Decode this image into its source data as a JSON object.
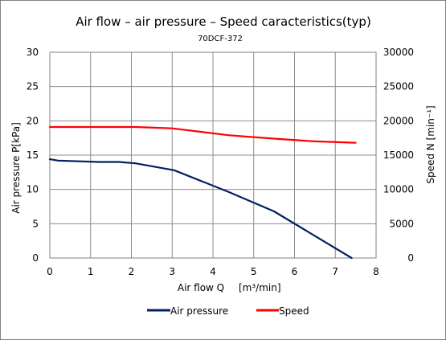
{
  "chart_data": {
    "type": "line",
    "title": "Air flow – air pressure – Speed caracteristics(typ)",
    "subtitle": "70DCF-372",
    "xlabel": "Air flow Q",
    "xlabel_unit": "[m³/min]",
    "ylabel_left": "Air pressure P[kPa]",
    "ylabel_right": "Speed N  [min⁻¹]",
    "xlim": [
      0,
      8
    ],
    "ylim_left": [
      0,
      30
    ],
    "ylim_right": [
      0,
      30000
    ],
    "x_ticks": [
      "0",
      "1",
      "2",
      "3",
      "4",
      "5",
      "6",
      "7",
      "8"
    ],
    "y_left_ticks": [
      "0",
      "5",
      "10",
      "15",
      "20",
      "25",
      "30"
    ],
    "y_right_ticks": [
      "0",
      "5000",
      "10000",
      "15000",
      "20000",
      "25000",
      "30000"
    ],
    "grid": true,
    "legend_position": "bottom",
    "series": [
      {
        "name": "Air pressure",
        "axis": "left",
        "color": "#002060",
        "x": [
          0,
          0.2,
          1.2,
          1.7,
          2.1,
          3.05,
          4.4,
          5.5,
          7.4
        ],
        "y": [
          14.4,
          14.2,
          14.0,
          14.0,
          13.8,
          12.8,
          9.6,
          6.8,
          0
        ]
      },
      {
        "name": "Speed",
        "axis": "right",
        "color": "#ff0000",
        "x": [
          0,
          1,
          2,
          2.1,
          3.0,
          4.4,
          5.5,
          6.5,
          7.5
        ],
        "y": [
          19100,
          19100,
          19100,
          19100,
          18900,
          17900,
          17400,
          17000,
          16800
        ]
      }
    ]
  }
}
